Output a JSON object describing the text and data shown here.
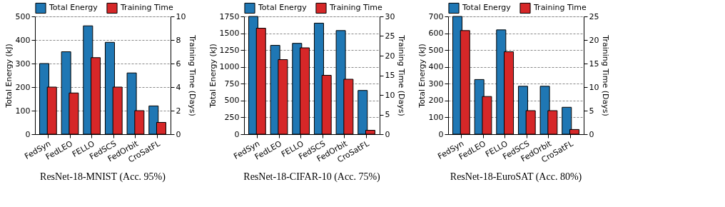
{
  "chart_data": [
    {
      "type": "bar",
      "title": "ResNet-18-MNIST (Acc. 95%)",
      "ylabel": "Total Energy (kJ)",
      "y2label": "Training Time (Days)",
      "categories": [
        "FedSyn",
        "FedLEO",
        "FELLO",
        "FedSCS",
        "FedOrbit",
        "CroSatFL"
      ],
      "series": [
        {
          "name": "Total Energy",
          "color": "#1f77b4",
          "values": [
            300,
            350,
            460,
            390,
            260,
            120
          ]
        },
        {
          "name": "Training Time",
          "color": "#d62728",
          "axis": "y2",
          "values": [
            4,
            3.5,
            6.5,
            4,
            2,
            1
          ]
        }
      ],
      "ylim": [
        0,
        500
      ],
      "yticks": [
        0,
        100,
        200,
        300,
        400,
        500
      ],
      "y2lim": [
        0,
        10
      ],
      "y2ticks": [
        0,
        2,
        4,
        6,
        8,
        10
      ],
      "grid": "y",
      "legend": "top"
    },
    {
      "type": "bar",
      "title": "ResNet-18-CIFAR-10 (Acc. 75%)",
      "ylabel": "Total Energy (kJ)",
      "y2label": "Training Time (Days)",
      "categories": [
        "FedSyn",
        "FedLEO",
        "FELLO",
        "FedSCS",
        "FedOrbit",
        "CroSatFL"
      ],
      "series": [
        {
          "name": "Total Energy",
          "color": "#1f77b4",
          "values": [
            1750,
            1320,
            1350,
            1650,
            1540,
            650
          ]
        },
        {
          "name": "Training Time",
          "color": "#d62728",
          "axis": "y2",
          "values": [
            27,
            19,
            22,
            15,
            14,
            1
          ]
        }
      ],
      "ylim": [
        0,
        1750
      ],
      "yticks": [
        0,
        250,
        500,
        750,
        1000,
        1250,
        1500,
        1750
      ],
      "y2lim": [
        0,
        30
      ],
      "y2ticks": [
        0,
        5,
        10,
        15,
        20,
        25,
        30
      ],
      "grid": "y",
      "legend": "top"
    },
    {
      "type": "bar",
      "title": "ResNet-18-EuroSAT (Acc. 80%)",
      "ylabel": "Total Energy (kJ)",
      "y2label": "Training Time (Days)",
      "categories": [
        "FedSyn",
        "FedLEO",
        "FELLO",
        "FedSCS",
        "FedOrbit",
        "CroSatFL"
      ],
      "series": [
        {
          "name": "Total Energy",
          "color": "#1f77b4",
          "values": [
            700,
            325,
            620,
            285,
            285,
            160
          ]
        },
        {
          "name": "Training Time",
          "color": "#d62728",
          "axis": "y2",
          "values": [
            22,
            8,
            17.5,
            5,
            5,
            1
          ]
        }
      ],
      "ylim": [
        0,
        700
      ],
      "yticks": [
        0,
        100,
        200,
        300,
        400,
        500,
        600,
        700
      ],
      "y2lim": [
        0,
        25
      ],
      "y2ticks": [
        0,
        5,
        10,
        15,
        20,
        25
      ],
      "grid": "y",
      "legend": "top"
    }
  ]
}
